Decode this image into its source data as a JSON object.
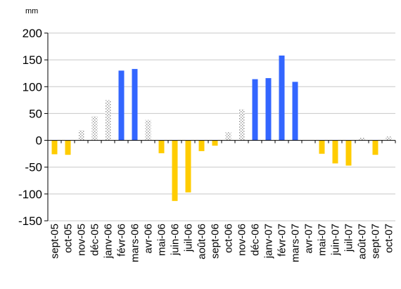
{
  "chart_data": {
    "type": "bar",
    "unit": "mm",
    "ylim": [
      -150,
      200
    ],
    "yticks": [
      -150,
      -100,
      -50,
      0,
      50,
      100,
      150,
      200
    ],
    "grid": true,
    "categories": [
      "sept-05",
      "oct-05",
      "nov-05",
      "déc-05",
      "janv-06",
      "févr-06",
      "mars-06",
      "avr-06",
      "mai-06",
      "juin-06",
      "juil-06",
      "août-06",
      "sept-06",
      "oct-06",
      "nov-06",
      "déc-06",
      "janv-07",
      "févr-07",
      "mars-07",
      "avr-07",
      "mai-07",
      "juin-07",
      "juil-07",
      "août-07",
      "sept-07",
      "oct-07"
    ],
    "series": [
      {
        "kind": "deficit",
        "color": "#FFCC00",
        "values": [
          -26,
          -27,
          0,
          0,
          0,
          0,
          0,
          0,
          -24,
          -113,
          -97,
          -20,
          -10,
          0,
          0,
          0,
          0,
          0,
          0,
          0,
          -25,
          -43,
          -47,
          0,
          -27,
          0
        ]
      },
      {
        "kind": "reserve",
        "color": "#999999",
        "pattern": "dotted",
        "values": [
          0,
          0,
          19,
          45,
          75,
          100,
          100,
          38,
          0,
          0,
          0,
          0,
          0,
          15,
          58,
          100,
          100,
          100,
          100,
          0,
          0,
          0,
          0,
          5,
          0,
          7
        ]
      },
      {
        "kind": "excess",
        "color": "#3366FF",
        "values": [
          0,
          0,
          0,
          0,
          0,
          130,
          133,
          0,
          0,
          0,
          0,
          0,
          0,
          0,
          0,
          114,
          116,
          158,
          109,
          0,
          0,
          0,
          0,
          0,
          0,
          0
        ]
      }
    ]
  }
}
